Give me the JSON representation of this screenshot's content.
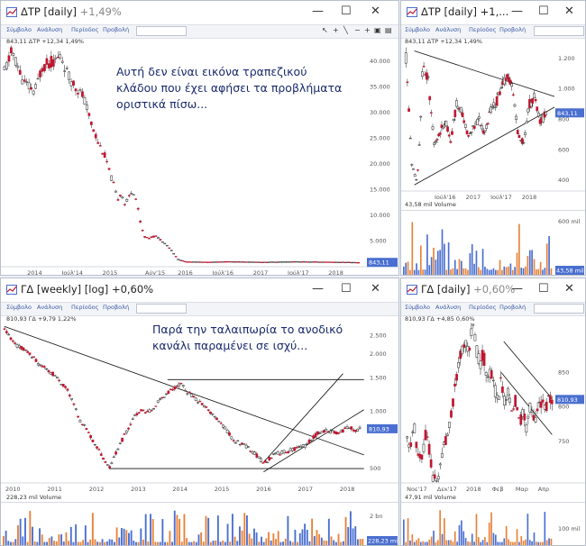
{
  "menu": {
    "symbol": "Σύμβολο",
    "analysis": "Ανάλυση",
    "period": "Περίοδος",
    "view": "Προβολή"
  },
  "icons": {
    "window": "window-icon",
    "minimize": "minimize-icon",
    "maximize": "maximize-icon",
    "close": "close-icon"
  },
  "colors": {
    "price": "#c0162f",
    "line": "#000000",
    "vol_up": "#4a6fd0",
    "vol_down": "#e8823a",
    "label_bg": "#4a6fd0",
    "annotation": "#1a2a6e"
  },
  "windows": [
    {
      "id": "w1",
      "title": "ΔΤΡ [daily]",
      "change": "+1,49%",
      "info": "843,11 ΔΤΡ +12,34 1,49%",
      "annotation": [
        "Αυτή δεν είναι εικόνα τραπεζικού",
        "κλάδου που έχει αφήσει τα προβλήματα",
        "οριστικά πίσω..."
      ],
      "chart_data": {
        "type": "line",
        "series": [
          {
            "x": [
              2013.6,
              2013.7,
              2013.85,
              2014.0,
              2014.1,
              2014.25,
              2014.35,
              2014.45,
              2014.55,
              2014.65,
              2014.75,
              2014.85,
              2014.95,
              2015.0,
              2015.05,
              2015.1,
              2015.15,
              2015.2,
              2015.3,
              2015.35,
              2015.4,
              2015.45,
              2015.5,
              2015.6,
              2015.7,
              2015.8,
              2015.9,
              2016.0,
              2016.3,
              2016.6,
              2017.0,
              2017.5,
              2018.0,
              2018.3
            ],
            "y": [
              38000,
              42000,
              36000,
              34000,
              39000,
              40000,
              41000,
              37000,
              35000,
              33000,
              28000,
              24000,
              21000,
              18000,
              16000,
              13000,
              14500,
              12000,
              15000,
              13000,
              9000,
              6000,
              5500,
              6000,
              5000,
              3500,
              1500,
              1000,
              900,
              1000,
              900,
              1000,
              900,
              843
            ]
          }
        ],
        "price_label": "843,11",
        "xticks": [
          "2014",
          "Ιούλ'14",
          "2015",
          "Αύγ'15",
          "2016",
          "Ιούλ'16",
          "2017",
          "Ιούλ'17",
          "2018"
        ],
        "yticks": [
          "40.000",
          "35.000",
          "30.000",
          "25.000",
          "20.000",
          "15.000",
          "10.000",
          "5.000"
        ],
        "ylim": [
          0,
          43500
        ]
      }
    },
    {
      "id": "w2",
      "title": "ΔΤΡ [daily] +1,...",
      "info": "843,11 ΔΤΡ +12,34 1,49%",
      "volume_info": "43,58 mil Volume",
      "chart_data": {
        "type": "line",
        "series": [
          {
            "x": [
              2015.8,
              2015.85,
              2015.9,
              2016.0,
              2016.05,
              2016.1,
              2016.2,
              2016.3,
              2016.4,
              2016.5,
              2016.6,
              2016.7,
              2016.8,
              2016.9,
              2017.0,
              2017.1,
              2017.2,
              2017.3,
              2017.4,
              2017.5,
              2017.6,
              2017.7,
              2017.8,
              2017.9,
              2018.0,
              2018.1,
              2018.2,
              2018.3
            ],
            "y": [
              1200,
              900,
              500,
              380,
              700,
              1150,
              1050,
              650,
              700,
              800,
              650,
              900,
              850,
              700,
              750,
              800,
              700,
              850,
              900,
              1000,
              1100,
              1000,
              700,
              650,
              900,
              950,
              780,
              843
            ]
          }
        ],
        "price_label": "843,11",
        "xticks": [
          "Ιούλ'16",
          "2017",
          "Ιούλ'17",
          "2018"
        ],
        "yticks": [
          "1.200",
          "1.000",
          "800",
          "600",
          "400"
        ],
        "ylim": [
          330,
          1300
        ],
        "trendlines": [
          {
            "x": [
              2015.95,
              2018.45
            ],
            "y": [
              1250,
              950
            ]
          },
          {
            "x": [
              2015.95,
              2018.45
            ],
            "y": [
              370,
              880
            ]
          }
        ],
        "volume": {
          "yticks": [
            "600 mil"
          ],
          "last_label": "43,58 mil"
        }
      }
    },
    {
      "id": "w3",
      "title": "ΓΔ [weekly] [log]",
      "change": "+0,60%",
      "info": "810,93 ΓΔ +9,79 1,22%",
      "volume_info": "228,23 mil Volume",
      "annotation": [
        "Παρά την ταλαιπωρία το ανοδικό",
        "κανάλι παραμένει σε ισχύ..."
      ],
      "chart_data": {
        "type": "line",
        "series": [
          {
            "x": [
              2009.8,
              2010.0,
              2010.3,
              2010.6,
              2011.0,
              2011.3,
              2011.6,
              2012.0,
              2012.3,
              2012.5,
              2012.8,
              2013.0,
              2013.3,
              2013.6,
              2014.0,
              2014.2,
              2014.5,
              2014.8,
              2015.0,
              2015.3,
              2015.6,
              2015.8,
              2016.0,
              2016.3,
              2016.6,
              2017.0,
              2017.3,
              2017.5,
              2017.8,
              2018.0,
              2018.2,
              2018.3
            ],
            "y": [
              2700,
              2300,
              2100,
              1800,
              1550,
              1300,
              900,
              650,
              500,
              620,
              850,
              1000,
              1000,
              1200,
              1400,
              1250,
              1100,
              950,
              850,
              700,
              650,
              600,
              530,
              600,
              620,
              660,
              770,
              800,
              760,
              830,
              800,
              810
            ]
          }
        ],
        "price_label": "810,93",
        "xticks": [
          "2010",
          "2011",
          "2012",
          "2013",
          "2014",
          "2015",
          "2016",
          "2017",
          "2018"
        ],
        "yticks": [
          "2.500",
          "2.000",
          "1.500",
          "1.000",
          "500"
        ],
        "ylim": [
          420,
          3000
        ],
        "log_scale": true,
        "trendlines": [
          {
            "x": [
              2009.8,
              2018.4
            ],
            "y": [
              2800,
              590
            ]
          },
          {
            "x": [
              2013.7,
              2018.4
            ],
            "y": [
              1470,
              1470
            ]
          },
          {
            "x": [
              2012.3,
              2018.4
            ],
            "y": [
              500,
              500
            ]
          },
          {
            "x": [
              2016.0,
              2017.9
            ],
            "y": [
              540,
              1580
            ]
          },
          {
            "x": [
              2016.0,
              2018.4
            ],
            "y": [
              480,
              1020
            ]
          }
        ],
        "volume": {
          "yticks": [
            "2 bn"
          ],
          "last_label": "228,23 mil"
        }
      }
    },
    {
      "id": "w4",
      "title": "ΓΔ [daily]",
      "change": "+0,60%",
      "info": "810,93 ΓΔ +4,85 0,60%",
      "volume_info": "47,91 mil Volume",
      "chart_data": {
        "type": "line",
        "series": [
          {
            "x": [
              0,
              3,
              6,
              9,
              12,
              15,
              18,
              21,
              24,
              27,
              30,
              33,
              36,
              39,
              42,
              45,
              48,
              51,
              54,
              57,
              60,
              63,
              66,
              69,
              72,
              75,
              78,
              81,
              84,
              87,
              90,
              93,
              96,
              99,
              102,
              105,
              108,
              111,
              114,
              117,
              120
            ],
            "y": [
              760,
              740,
              770,
              730,
              720,
              760,
              740,
              700,
              690,
              710,
              740,
              760,
              780,
              820,
              850,
              880,
              900,
              870,
              920,
              890,
              860,
              880,
              840,
              850,
              830,
              810,
              840,
              800,
              830,
              790,
              810,
              780,
              790,
              770,
              800,
              780,
              790,
              810,
              800,
              810,
              811
            ]
          }
        ],
        "price_label": "810,93",
        "xticks": [
          "Νοε'17",
          "Δεκ'17",
          "2018",
          "Φεβ",
          "Μαρ",
          "Απρ"
        ],
        "yticks": [
          "850",
          "800",
          "750"
        ],
        "ylim": [
          690,
          925
        ],
        "trendlines": [
          {
            "x": [
              80,
              120
            ],
            "y": [
              895,
              812
            ]
          },
          {
            "x": [
              78,
              120
            ],
            "y": [
              850,
              760
            ]
          }
        ],
        "volume": {
          "yticks": [
            "100 mil"
          ]
        }
      }
    }
  ]
}
